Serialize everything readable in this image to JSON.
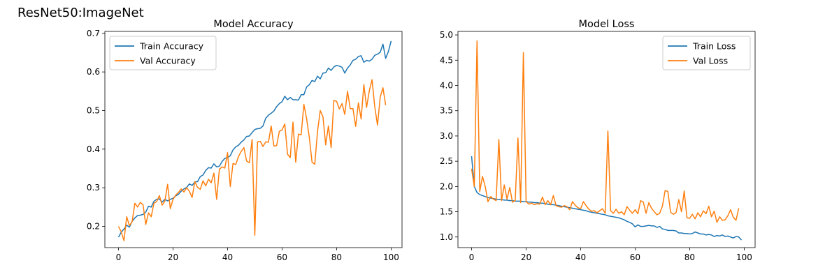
{
  "figure_title": "ResNet50:ImageNet",
  "colors": {
    "train": "#1f77b4",
    "val": "#ff7f0e"
  },
  "chart_data": [
    {
      "type": "line",
      "title": "Model Accuracy",
      "xlabel": "",
      "ylabel": "",
      "xlim": [
        -5,
        104
      ],
      "ylim": [
        0.145,
        0.705
      ],
      "xticks": [
        0,
        20,
        40,
        60,
        80,
        100
      ],
      "yticks": [
        0.2,
        0.3,
        0.4,
        0.5,
        0.6,
        0.7
      ],
      "ytick_labels": [
        "0.2",
        "0.3",
        "0.4",
        "0.5",
        "0.6",
        "0.7"
      ],
      "grid": false,
      "legend": "top-left",
      "series": [
        {
          "name": "Train Accuracy",
          "color": "#1f77b4",
          "x_start": 0,
          "values": [
            0.172,
            0.185,
            0.193,
            0.203,
            0.198,
            0.213,
            0.222,
            0.228,
            0.229,
            0.231,
            0.237,
            0.252,
            0.25,
            0.265,
            0.27,
            0.271,
            0.263,
            0.27,
            0.266,
            0.27,
            0.273,
            0.279,
            0.283,
            0.291,
            0.297,
            0.301,
            0.31,
            0.306,
            0.315,
            0.316,
            0.329,
            0.333,
            0.345,
            0.352,
            0.351,
            0.362,
            0.354,
            0.356,
            0.368,
            0.376,
            0.378,
            0.383,
            0.398,
            0.406,
            0.41,
            0.418,
            0.424,
            0.433,
            0.434,
            0.443,
            0.451,
            0.453,
            0.454,
            0.46,
            0.48,
            0.488,
            0.493,
            0.499,
            0.51,
            0.518,
            0.523,
            0.537,
            0.528,
            0.534,
            0.528,
            0.528,
            0.527,
            0.541,
            0.541,
            0.561,
            0.567,
            0.578,
            0.575,
            0.589,
            0.582,
            0.597,
            0.598,
            0.61,
            0.604,
            0.613,
            0.617,
            0.615,
            0.612,
            0.597,
            0.61,
            0.618,
            0.63,
            0.633,
            0.64,
            0.642,
            0.625,
            0.63,
            0.628,
            0.633,
            0.643,
            0.646,
            0.651,
            0.672,
            0.635,
            0.653,
            0.68
          ]
        },
        {
          "name": "Val Accuracy",
          "color": "#ff7f0e",
          "x_start": 0,
          "values": [
            0.2,
            0.186,
            0.163,
            0.225,
            0.202,
            0.212,
            0.26,
            0.25,
            0.262,
            0.256,
            0.205,
            0.235,
            0.225,
            0.26,
            0.264,
            0.28,
            0.255,
            0.265,
            0.309,
            0.246,
            0.27,
            0.281,
            0.288,
            0.297,
            0.289,
            0.3,
            0.291,
            0.275,
            0.316,
            0.301,
            0.296,
            0.318,
            0.305,
            0.322,
            0.313,
            0.338,
            0.27,
            0.348,
            0.354,
            0.351,
            0.391,
            0.303,
            0.363,
            0.36,
            0.381,
            0.394,
            0.404,
            0.369,
            0.365,
            0.425,
            0.177,
            0.419,
            0.42,
            0.407,
            0.419,
            0.418,
            0.46,
            0.408,
            0.409,
            0.446,
            0.45,
            0.465,
            0.387,
            0.378,
            0.47,
            0.366,
            0.439,
            0.437,
            0.516,
            0.479,
            0.43,
            0.366,
            0.361,
            0.446,
            0.5,
            0.484,
            0.411,
            0.46,
            0.404,
            0.526,
            0.524,
            0.504,
            0.518,
            0.49,
            0.55,
            0.505,
            0.505,
            0.459,
            0.52,
            0.478,
            0.567,
            0.508,
            0.551,
            0.58,
            0.51,
            0.462,
            0.535,
            0.559,
            0.514
          ]
        }
      ]
    },
    {
      "type": "line",
      "title": "Model Loss",
      "xlabel": "",
      "ylabel": "",
      "xlim": [
        -5,
        104
      ],
      "ylim": [
        0.79,
        5.07
      ],
      "xticks": [
        0,
        20,
        40,
        60,
        80,
        100
      ],
      "yticks": [
        1.0,
        1.5,
        2.0,
        2.5,
        3.0,
        3.5,
        4.0,
        4.5,
        5.0
      ],
      "ytick_labels": [
        "1.0",
        "1.5",
        "2.0",
        "2.5",
        "3.0",
        "3.5",
        "4.0",
        "4.5",
        "5.0"
      ],
      "grid": false,
      "legend": "top-right",
      "series": [
        {
          "name": "Train Loss",
          "color": "#1f77b4",
          "x_start": 0,
          "values": [
            2.6,
            2.0,
            1.88,
            1.84,
            1.82,
            1.8,
            1.78,
            1.77,
            1.76,
            1.75,
            1.74,
            1.74,
            1.73,
            1.73,
            1.72,
            1.72,
            1.71,
            1.71,
            1.71,
            1.7,
            1.7,
            1.69,
            1.69,
            1.68,
            1.68,
            1.67,
            1.67,
            1.66,
            1.65,
            1.64,
            1.64,
            1.63,
            1.62,
            1.61,
            1.6,
            1.59,
            1.58,
            1.57,
            1.56,
            1.55,
            1.54,
            1.53,
            1.52,
            1.5,
            1.49,
            1.48,
            1.47,
            1.46,
            1.45,
            1.44,
            1.42,
            1.41,
            1.4,
            1.39,
            1.38,
            1.36,
            1.34,
            1.31,
            1.29,
            1.26,
            1.2,
            1.24,
            1.21,
            1.21,
            1.22,
            1.23,
            1.22,
            1.22,
            1.19,
            1.21,
            1.16,
            1.15,
            1.13,
            1.13,
            1.13,
            1.12,
            1.08,
            1.08,
            1.07,
            1.07,
            1.06,
            1.07,
            1.1,
            1.08,
            1.06,
            1.06,
            1.04,
            1.05,
            1.04,
            1.01,
            1.03,
            1.02,
            1.04,
            1.01,
            1.02,
            1.0,
            0.98,
            1.01,
            1.0,
            0.94
          ]
        },
        {
          "name": "Val Loss",
          "color": "#ff7f0e",
          "x_start": 0,
          "values": [
            2.35,
            2.0,
            4.88,
            1.9,
            2.2,
            2.0,
            1.7,
            1.8,
            1.75,
            1.72,
            2.93,
            1.72,
            2.03,
            1.75,
            1.98,
            1.69,
            1.72,
            2.96,
            1.68,
            4.65,
            1.7,
            1.65,
            1.67,
            1.64,
            1.66,
            1.65,
            1.79,
            1.64,
            1.72,
            1.64,
            1.82,
            1.62,
            1.6,
            1.59,
            1.62,
            1.6,
            1.54,
            1.7,
            1.63,
            1.58,
            1.56,
            1.7,
            1.62,
            1.55,
            1.51,
            1.52,
            1.48,
            1.52,
            1.56,
            1.47,
            3.1,
            1.52,
            1.47,
            1.55,
            1.47,
            1.5,
            1.44,
            1.6,
            1.53,
            1.47,
            1.54,
            1.46,
            1.72,
            1.69,
            1.47,
            1.68,
            1.57,
            1.5,
            1.44,
            1.47,
            1.61,
            1.92,
            1.9,
            1.49,
            1.45,
            1.48,
            1.74,
            1.5,
            1.91,
            1.38,
            1.37,
            1.45,
            1.36,
            1.48,
            1.4,
            1.52,
            1.46,
            1.61,
            1.4,
            1.51,
            1.29,
            1.4,
            1.33,
            1.34,
            1.42,
            1.54,
            1.39,
            1.33,
            1.57
          ]
        }
      ]
    }
  ]
}
